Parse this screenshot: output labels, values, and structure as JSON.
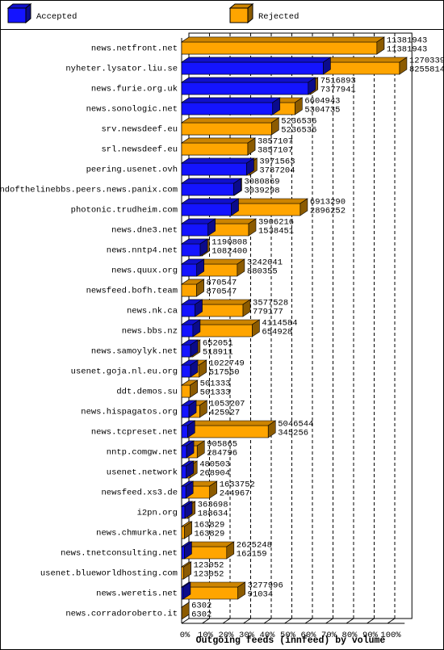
{
  "chart_data": {
    "type": "bar3d",
    "orientation": "horizontal",
    "x_label": "Outgoing feeds (innfeed) by volume",
    "categories": [
      "news.netfront.net",
      "nyheter.lysator.liu.se",
      "news.furie.org.uk",
      "news.sonologic.net",
      "srv.newsdeef.eu",
      "srl.newsdeef.eu",
      "peering.usenet.ovh",
      "endofthelinebbs.peers.news.panix.com",
      "photonic.trudheim.com",
      "news.dne3.net",
      "news.nntp4.net",
      "news.quux.org",
      "newsfeed.bofh.team",
      "news.nk.ca",
      "news.bbs.nz",
      "news.samoylyk.net",
      "usenet.goja.nl.eu.org",
      "ddt.demos.su",
      "news.hispagatos.org",
      "news.tcpreset.net",
      "nntp.comgw.net",
      "usenet.network",
      "newsfeed.xs3.de",
      "i2pn.org",
      "news.chmurka.net",
      "news.tnetconsulting.net",
      "usenet.blueworldhosting.com",
      "news.weretis.net",
      "news.corradoroberto.it"
    ],
    "series": [
      {
        "name": "Accepted",
        "color": "#1414ff",
        "values": [
          11381943,
          8255814,
          7377941,
          5304735,
          5236536,
          3857107,
          3787204,
          3039298,
          2896252,
          1538451,
          1082400,
          880355,
          870547,
          779177,
          654928,
          518911,
          517550,
          501333,
          425927,
          345256,
          284796,
          268904,
          244967,
          188634,
          163829,
          162159,
          123052,
          91034,
          6302
        ]
      },
      {
        "name": "Rejected",
        "color": "#ffa500",
        "values": [
          11381943,
          12703390,
          7516893,
          6604943,
          5236536,
          3857107,
          3971563,
          3080869,
          6913290,
          3906216,
          1190808,
          3242041,
          870547,
          3577528,
          4114584,
          652051,
          1022749,
          501333,
          1053207,
          5046544,
          905865,
          480503,
          1633752,
          363698,
          163829,
          2625248,
          123052,
          3277996,
          6302
        ]
      }
    ],
    "xlim": [
      0,
      13000000
    ],
    "xticks": [
      {
        "value": 0,
        "label": "0%"
      },
      {
        "value": 1200000,
        "label": "10%"
      },
      {
        "value": 2400000,
        "label": "20%"
      },
      {
        "value": 3600000,
        "label": "30%"
      },
      {
        "value": 4800000,
        "label": "40%"
      },
      {
        "value": 6000000,
        "label": "50%"
      },
      {
        "value": 7200000,
        "label": "60%"
      },
      {
        "value": 8400000,
        "label": "70%"
      },
      {
        "value": 9600000,
        "label": "80%"
      },
      {
        "value": 10800000,
        "label": "90%"
      },
      {
        "value": 12000000,
        "label": "100%"
      }
    ],
    "grid": true
  }
}
